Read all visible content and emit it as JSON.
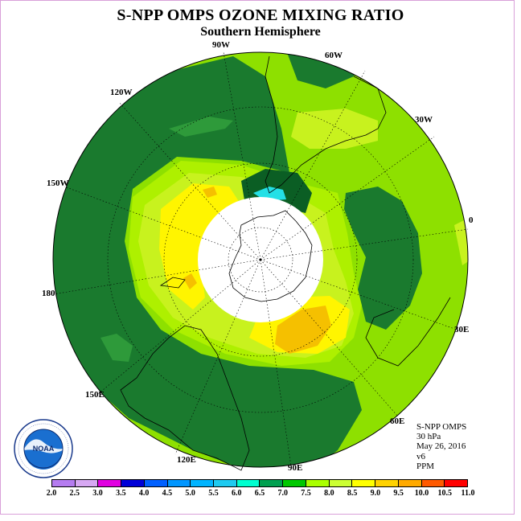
{
  "title": "S-NPP OMPS OZONE MIXING RATIO",
  "subtitle": "Southern Hemisphere",
  "logo": {
    "text": "NOAA",
    "ring_text": "NATIONAL OCEANIC AND ATMOSPHERIC ADMINISTRATION · U.S. DEPARTMENT OF COMMERCE"
  },
  "longitude_labels": [
    "90W",
    "60W",
    "120W",
    "30W",
    "150W",
    "0",
    "180",
    "30E",
    "150E",
    "60E",
    "120E",
    "90E"
  ],
  "info": {
    "instrument": "S-NPP OMPS",
    "level": "30 hPa",
    "date": "May 26, 2016",
    "version": "v6",
    "units": "PPM"
  },
  "colorbar": {
    "ticks": [
      "2.0",
      "2.5",
      "3.0",
      "3.5",
      "4.0",
      "4.5",
      "5.0",
      "5.5",
      "6.0",
      "6.5",
      "7.0",
      "7.5",
      "8.0",
      "8.5",
      "9.0",
      "9.5",
      "10.0",
      "10.5",
      "11.0"
    ],
    "colors": [
      "#b57cf0",
      "#d7a8f3",
      "#e100e1",
      "#0000d8",
      "#0060ff",
      "#0096ff",
      "#00b4ff",
      "#1ecaf0",
      "#00ffd0",
      "#00a050",
      "#00c800",
      "#aaff00",
      "#ccff33",
      "#ffff00",
      "#ffd200",
      "#ffaa00",
      "#ff5a00",
      "#ff0000",
      "#7a4a28"
    ],
    "levels": [
      2.0,
      2.5,
      3.0,
      3.5,
      4.0,
      4.5,
      5.0,
      5.5,
      6.0,
      6.5,
      7.0,
      7.5,
      8.0,
      8.5,
      9.0,
      9.5,
      10.0,
      10.5,
      11.0
    ],
    "map_colors": {
      "c65": "#1a7a2e",
      "c70": "#118a2a",
      "c75": "#8ee000",
      "c80": "#c8f21e",
      "c85": "#fff500",
      "c90": "#f5c000",
      "c55": "#24e0e6"
    }
  }
}
